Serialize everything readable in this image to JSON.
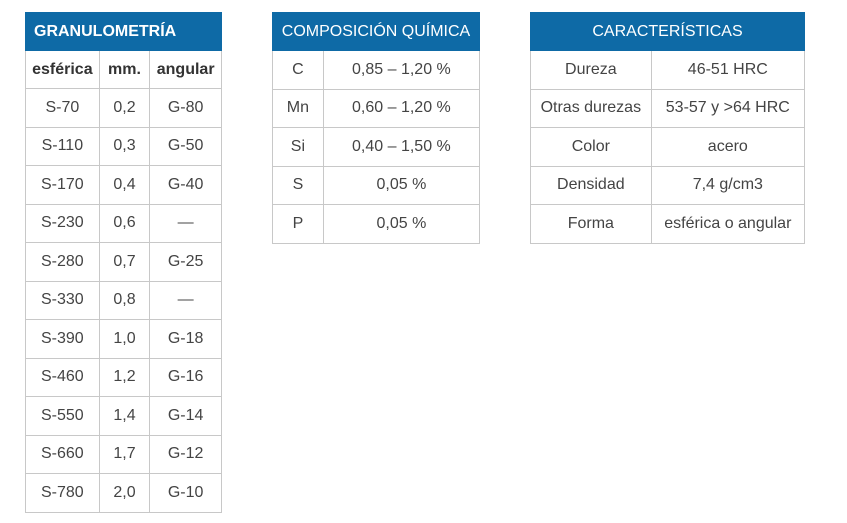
{
  "granulometria": {
    "title": "GRANULOMETRÍA",
    "columns": [
      "esférica",
      "mm.",
      "angular"
    ],
    "rows": [
      [
        "S-70",
        "0,2",
        "G-80"
      ],
      [
        "S-110",
        "0,3",
        "G-50"
      ],
      [
        "S-170",
        "0,4",
        "G-40"
      ],
      [
        "S-230",
        "0,6",
        "—"
      ],
      [
        "S-280",
        "0,7",
        "G-25"
      ],
      [
        "S-330",
        "0,8",
        "—"
      ],
      [
        "S-390",
        "1,0",
        "G-18"
      ],
      [
        "S-460",
        "1,2",
        "G-16"
      ],
      [
        "S-550",
        "1,4",
        "G-14"
      ],
      [
        "S-660",
        "1,7",
        "G-12"
      ],
      [
        "S-780",
        "2,0",
        "G-10"
      ]
    ]
  },
  "quimica": {
    "title": "COMPOSICIÓN QUÍMICA",
    "rows": [
      [
        "C",
        "0,85 – 1,20 %"
      ],
      [
        "Mn",
        "0,60 – 1,20 %"
      ],
      [
        "Si",
        "0,40 – 1,50 %"
      ],
      [
        "S",
        "0,05 %"
      ],
      [
        "P",
        "0,05 %"
      ]
    ]
  },
  "caracteristicas": {
    "title": "CARACTERÍSTICAS",
    "rows": [
      [
        "Dureza",
        "46-51 HRC"
      ],
      [
        "Otras durezas",
        "53-57 y >64 HRC"
      ],
      [
        "Color",
        "acero"
      ],
      [
        "Densidad",
        "7,4 g/cm3"
      ],
      [
        "Forma",
        "esférica o angular"
      ]
    ]
  },
  "colors": {
    "header_bg": "#0e6aa6",
    "header_text": "#ffffff",
    "border": "#c8c8c8",
    "text": "#444444"
  }
}
